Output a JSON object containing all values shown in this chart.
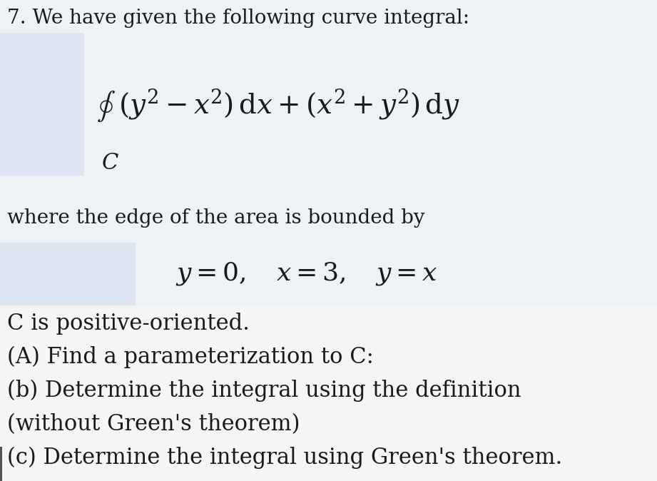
{
  "background_color": "#f5f5f5",
  "panel1_color": "#eef2f7",
  "panel2_color": "#eef2f7",
  "sidebar1_color": "#dde6f0",
  "sidebar2_color": "#dde6f0",
  "title": "7. We have given the following curve integral:",
  "where_text": "where the edge of the area is bounded by",
  "line1": "C is positive-oriented.",
  "line2": "(A) Find a parameterization to C:",
  "line3": "(b) Determine the integral using the definition",
  "line4": "(without Green's theorem)",
  "line5": "(c) Determine the integral using Green's theorem.",
  "text_color": "#1a1a1a",
  "title_fontsize": 20,
  "body_fontsize": 22,
  "math_fontsize": 28
}
